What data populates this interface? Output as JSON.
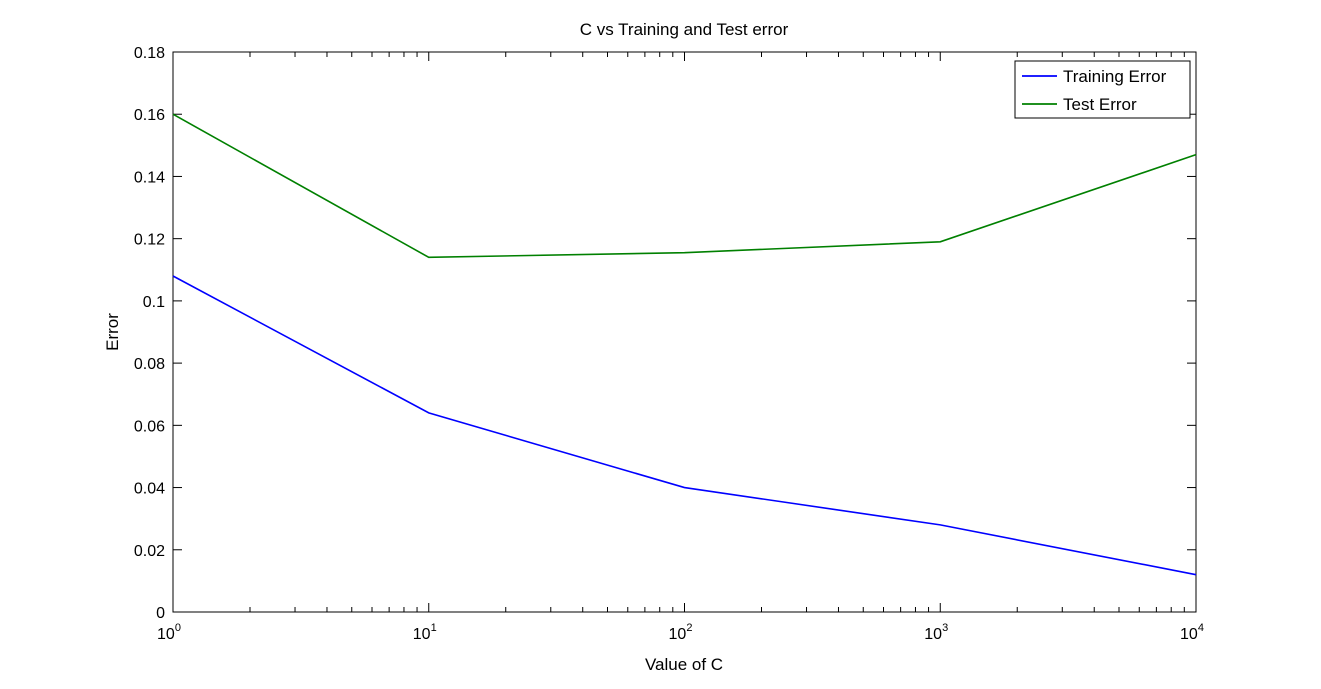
{
  "chart_data": {
    "type": "line",
    "title": "C vs Training and Test error",
    "xlabel": "Value of C",
    "ylabel": "Error",
    "xscale": "log",
    "xlim": [
      1,
      10000
    ],
    "ylim": [
      0,
      0.18
    ],
    "x": [
      1,
      10,
      100,
      1000,
      10000
    ],
    "xtick_base": "10",
    "xtick_exponents": [
      "0",
      "1",
      "2",
      "3",
      "4"
    ],
    "yticks": [
      "0",
      "0.02",
      "0.04",
      "0.06",
      "0.08",
      "0.1",
      "0.12",
      "0.14",
      "0.16",
      "0.18"
    ],
    "grid": false,
    "legend_position": "top-right",
    "series": [
      {
        "name": "Training Error",
        "color": "#0000ff",
        "values": [
          0.108,
          0.064,
          0.04,
          0.028,
          0.012
        ]
      },
      {
        "name": "Test Error",
        "color": "#008000",
        "values": [
          0.16,
          0.114,
          0.1155,
          0.119,
          0.147
        ]
      }
    ]
  }
}
